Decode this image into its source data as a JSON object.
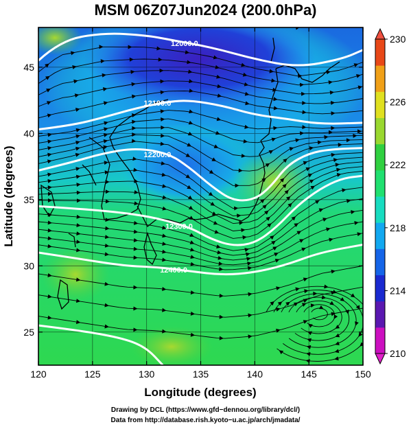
{
  "title": "MSM 06Z07Jun2024 (200.0hPa)",
  "x_axis": {
    "label": "Longitude (degrees)",
    "ticks": [
      "120",
      "125",
      "130",
      "135",
      "140",
      "145",
      "150"
    ]
  },
  "y_axis": {
    "label": "Latitude  (degrees)",
    "ticks": [
      "25",
      "30",
      "35",
      "40",
      "45"
    ]
  },
  "colorbar": {
    "ticks": [
      "210",
      "214",
      "218",
      "222",
      "226",
      "230"
    ],
    "min": 210,
    "max": 230,
    "colors": [
      "#cc10c0",
      "#5a18b0",
      "#1a2ad0",
      "#1565e8",
      "#12a8f0",
      "#18dcc0",
      "#20e070",
      "#30d040",
      "#9ad830",
      "#e0e020",
      "#f0a018",
      "#e84818"
    ]
  },
  "map": {
    "lon_range": [
      120,
      150
    ],
    "lat_range": [
      22.5,
      48
    ],
    "graticule_lon": [
      125,
      130,
      135,
      140,
      145
    ],
    "graticule_lat": [
      25,
      30,
      35,
      40,
      45
    ],
    "contour_labels": [
      "12000.0",
      "12100.0",
      "12200.0",
      "12300.0",
      "12400.0"
    ],
    "contours": [
      {
        "level": "12000.0",
        "points": [
          [
            120,
            45.5
          ],
          [
            122,
            47
          ],
          [
            126,
            47.6
          ],
          [
            130,
            47.4
          ],
          [
            132,
            47.1
          ],
          [
            136,
            46.5
          ],
          [
            140,
            45.6
          ],
          [
            144,
            45.0
          ],
          [
            148,
            45.6
          ],
          [
            150,
            46.3
          ]
        ]
      },
      {
        "level": "12100.0",
        "points": [
          [
            120,
            40.3
          ],
          [
            123,
            40.6
          ],
          [
            126,
            41.2
          ],
          [
            129,
            41.9
          ],
          [
            132,
            42.4
          ],
          [
            134,
            42.5
          ],
          [
            137,
            42.1
          ],
          [
            140,
            41.4
          ],
          [
            143,
            41.1
          ],
          [
            146,
            40.7
          ],
          [
            150,
            40.8
          ]
        ]
      },
      {
        "level": "12200.0",
        "points": [
          [
            120,
            37.2
          ],
          [
            123,
            37.8
          ],
          [
            126,
            38.5
          ],
          [
            129,
            38.9
          ],
          [
            132,
            38.5
          ],
          [
            134,
            37.4
          ],
          [
            136,
            36.0
          ],
          [
            138,
            34.9
          ],
          [
            140,
            35.0
          ],
          [
            141.5,
            36.0
          ],
          [
            143,
            37.6
          ],
          [
            145,
            38.5
          ],
          [
            147,
            38.8
          ],
          [
            150,
            38.9
          ]
        ]
      },
      {
        "level": "12300.0",
        "points": [
          [
            120,
            34.5
          ],
          [
            124,
            34.3
          ],
          [
            128,
            34.0
          ],
          [
            131,
            33.6
          ],
          [
            134,
            32.9
          ],
          [
            136,
            32.0
          ],
          [
            138,
            31.5
          ],
          [
            140,
            31.7
          ],
          [
            142,
            32.9
          ],
          [
            144,
            34.6
          ],
          [
            146,
            35.8
          ],
          [
            148,
            36.6
          ],
          [
            150,
            36.8
          ]
        ]
      },
      {
        "level": "12400.0",
        "points": [
          [
            120,
            31.0
          ],
          [
            124,
            30.5
          ],
          [
            128,
            30.0
          ],
          [
            131,
            29.9
          ],
          [
            134,
            29.6
          ],
          [
            137,
            29.3
          ],
          [
            140,
            29.5
          ],
          [
            143,
            30.1
          ],
          [
            146,
            31.0
          ],
          [
            150,
            31.6
          ]
        ]
      },
      {
        "level": "",
        "points": [
          [
            120,
            25.5
          ],
          [
            124,
            25.1
          ],
          [
            128,
            24.5
          ],
          [
            130,
            23.8
          ],
          [
            131.5,
            22.5
          ]
        ]
      }
    ]
  },
  "credits": [
    "Drawing by DCL (https://www.gfd−dennou.org/library/dcl/)",
    "Data from http://database.rish.kyoto−u.ac.jp/arch/jmadata/"
  ]
}
